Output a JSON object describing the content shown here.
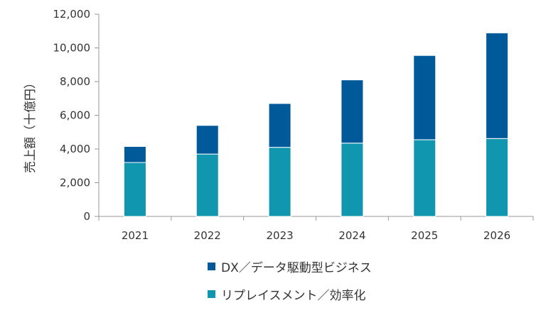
{
  "chart_data": {
    "type": "bar",
    "stacked": true,
    "categories": [
      "2021",
      "2022",
      "2023",
      "2024",
      "2025",
      "2026"
    ],
    "series": [
      {
        "name": "リプレイスメント／効率化",
        "color": "#1196b0",
        "values": [
          3200,
          3700,
          4100,
          4350,
          4550,
          4620
        ]
      },
      {
        "name": "DX／データ駆動型ビジネス",
        "color": "#005a9a",
        "values": [
          950,
          1700,
          2600,
          3750,
          5000,
          6270
        ]
      }
    ],
    "ylabel": "売上額（十億円）",
    "ylim": [
      0,
      12000
    ],
    "yticks": [
      0,
      2000,
      4000,
      6000,
      8000,
      10000,
      12000
    ],
    "ytick_labels": [
      "0",
      "2,000",
      "4,000",
      "6,000",
      "8,000",
      "10,000",
      "12,000"
    ],
    "grid": false,
    "legend_placement": "bottom"
  }
}
